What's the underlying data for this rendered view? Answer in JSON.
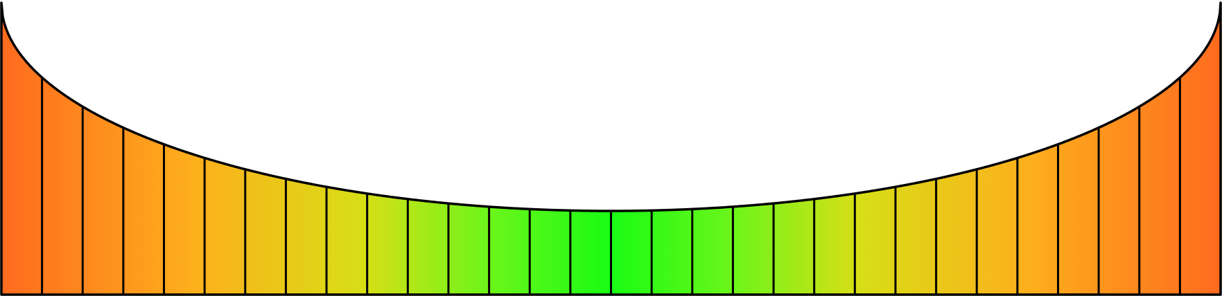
{
  "diagram": {
    "shape": "bowl-curve-area",
    "band_count": 30,
    "gradient_stops": [
      {
        "offset": 0.0,
        "color": "#ff6a1f"
      },
      {
        "offset": 0.16,
        "color": "#fdb01c"
      },
      {
        "offset": 0.3,
        "color": "#d6df16"
      },
      {
        "offset": 0.4,
        "color": "#6cf51a"
      },
      {
        "offset": 0.5,
        "color": "#19fc14"
      },
      {
        "offset": 0.6,
        "color": "#6cf51a"
      },
      {
        "offset": 0.7,
        "color": "#d6df16"
      },
      {
        "offset": 0.84,
        "color": "#fdb01c"
      },
      {
        "offset": 1.0,
        "color": "#ff6a1f"
      }
    ],
    "stroke_color": "#000000",
    "background_color": "#ffffff"
  }
}
